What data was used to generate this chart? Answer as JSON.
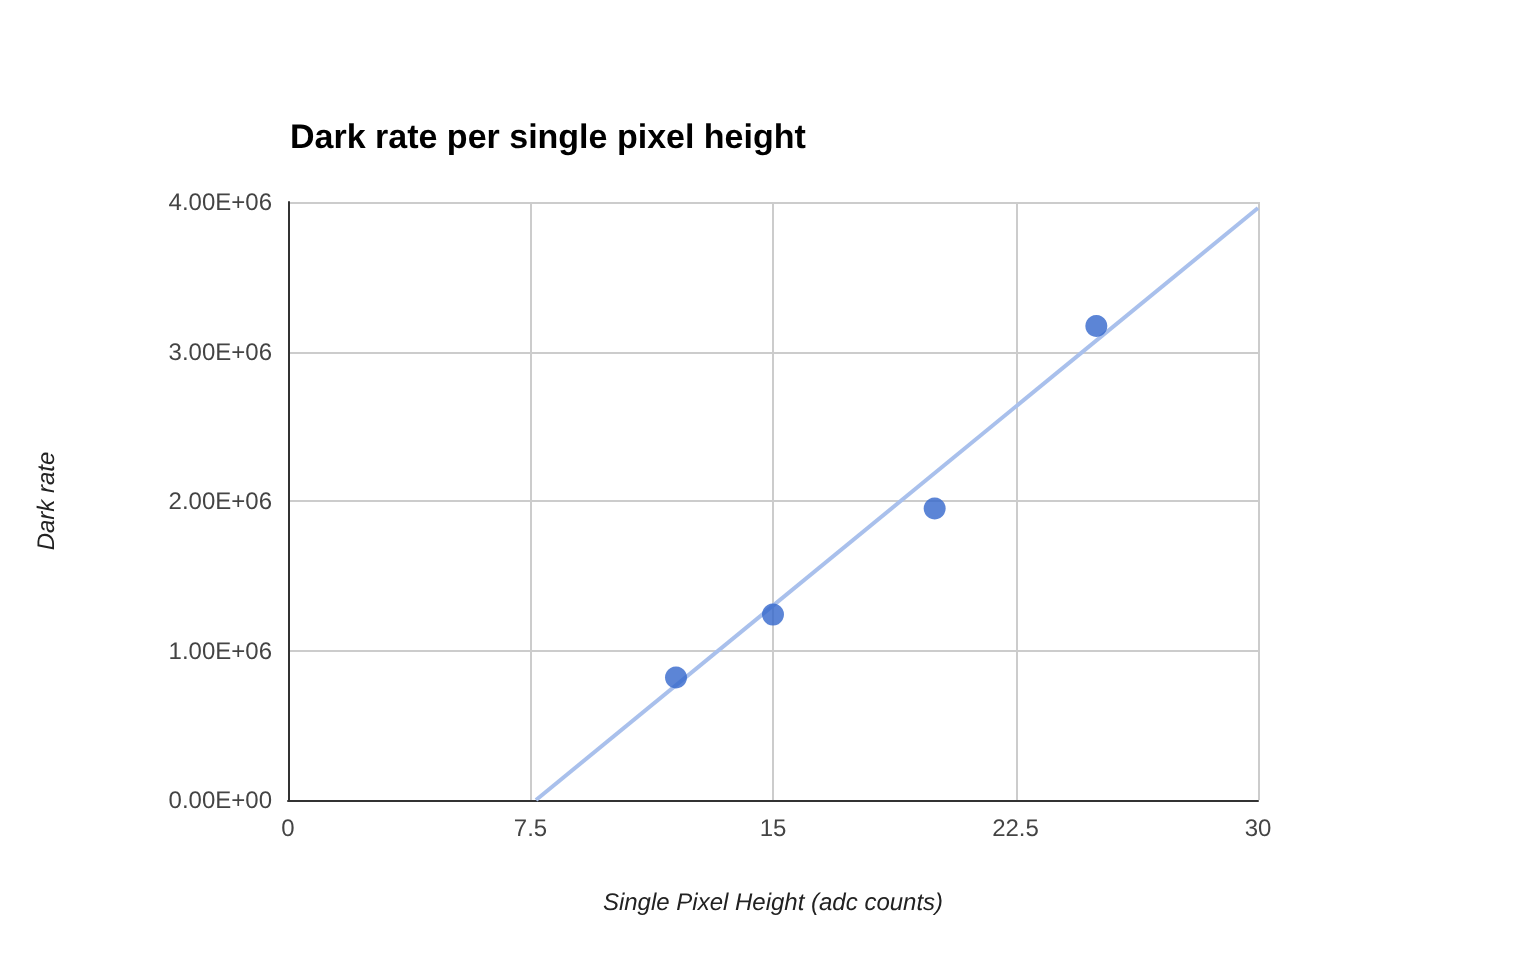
{
  "chart_data": {
    "type": "scatter",
    "title": "Dark rate per single pixel height",
    "xlabel": "Single Pixel Height (adc counts)",
    "ylabel": "Dark rate",
    "series": [
      {
        "color": "#3366cc",
        "x": [
          12,
          15,
          20,
          25
        ],
        "values": [
          820000,
          1240000,
          1950000,
          3170000
        ],
        "marker": "circle"
      },
      {
        "type": "line",
        "color": "#a9c0ec",
        "x": [
          7.67,
          30
        ],
        "values": [
          0,
          3960000
        ],
        "marker": "none"
      }
    ],
    "xlim": [
      0,
      30
    ],
    "xticks": [
      0,
      7.5,
      15,
      22.5,
      30
    ],
    "ylim": [
      0,
      4000000
    ],
    "yticks": [
      {
        "value": 0,
        "label": "0.00E+00"
      },
      {
        "value": 1000000,
        "label": "1.00E+06"
      },
      {
        "value": 2000000,
        "label": "2.00E+06"
      },
      {
        "value": 3000000,
        "label": "3.00E+06"
      },
      {
        "value": 4000000,
        "label": "4.00E+06"
      }
    ],
    "grid": true
  }
}
